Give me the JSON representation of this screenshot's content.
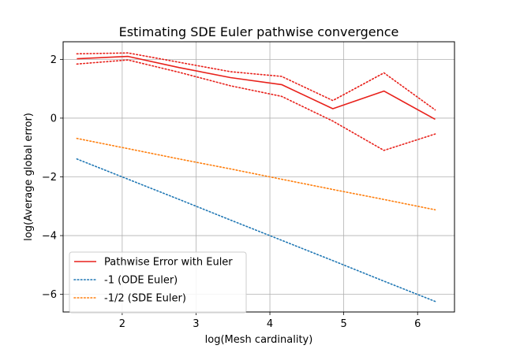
{
  "chart_data": {
    "type": "line",
    "title": "Estimating SDE Euler pathwise convergence",
    "xlabel": "log(Mesh cardinality)",
    "ylabel": "log(Average global error)",
    "xlim": [
      1.2,
      6.5
    ],
    "ylim": [
      -6.6,
      2.6
    ],
    "xticks": [
      2,
      3,
      4,
      5,
      6
    ],
    "yticks": [
      -6,
      -4,
      -2,
      0,
      2
    ],
    "grid": true,
    "legend_position": "lower-left",
    "x": [
      1.386,
      2.079,
      2.773,
      3.466,
      4.159,
      4.852,
      5.545,
      6.238
    ],
    "series": [
      {
        "name": "Pathwise Error with Euler",
        "color": "#e8211b",
        "style": "solid",
        "values": [
          2.02,
          2.1,
          1.72,
          1.38,
          1.14,
          0.32,
          0.92,
          -0.04
        ]
      },
      {
        "name": "",
        "color": "#e8211b",
        "style": "dotted",
        "role": "upper band",
        "values": [
          2.19,
          2.22,
          1.9,
          1.58,
          1.42,
          0.6,
          1.54,
          0.28
        ]
      },
      {
        "name": "",
        "color": "#e8211b",
        "style": "dotted",
        "role": "lower band",
        "values": [
          1.84,
          1.98,
          1.56,
          1.1,
          0.74,
          -0.1,
          -1.1,
          -0.54
        ]
      },
      {
        "name": "-1 (ODE Euler)",
        "color": "#1f77b4",
        "style": "dotted",
        "values": [
          -1.39,
          -2.08,
          -2.77,
          -3.47,
          -4.16,
          -4.85,
          -5.55,
          -6.24
        ]
      },
      {
        "name": "-1/2 (SDE Euler)",
        "color": "#ff7f0e",
        "style": "dotted",
        "values": [
          -0.69,
          -1.04,
          -1.39,
          -1.73,
          -2.08,
          -2.43,
          -2.77,
          -3.12
        ]
      }
    ]
  }
}
